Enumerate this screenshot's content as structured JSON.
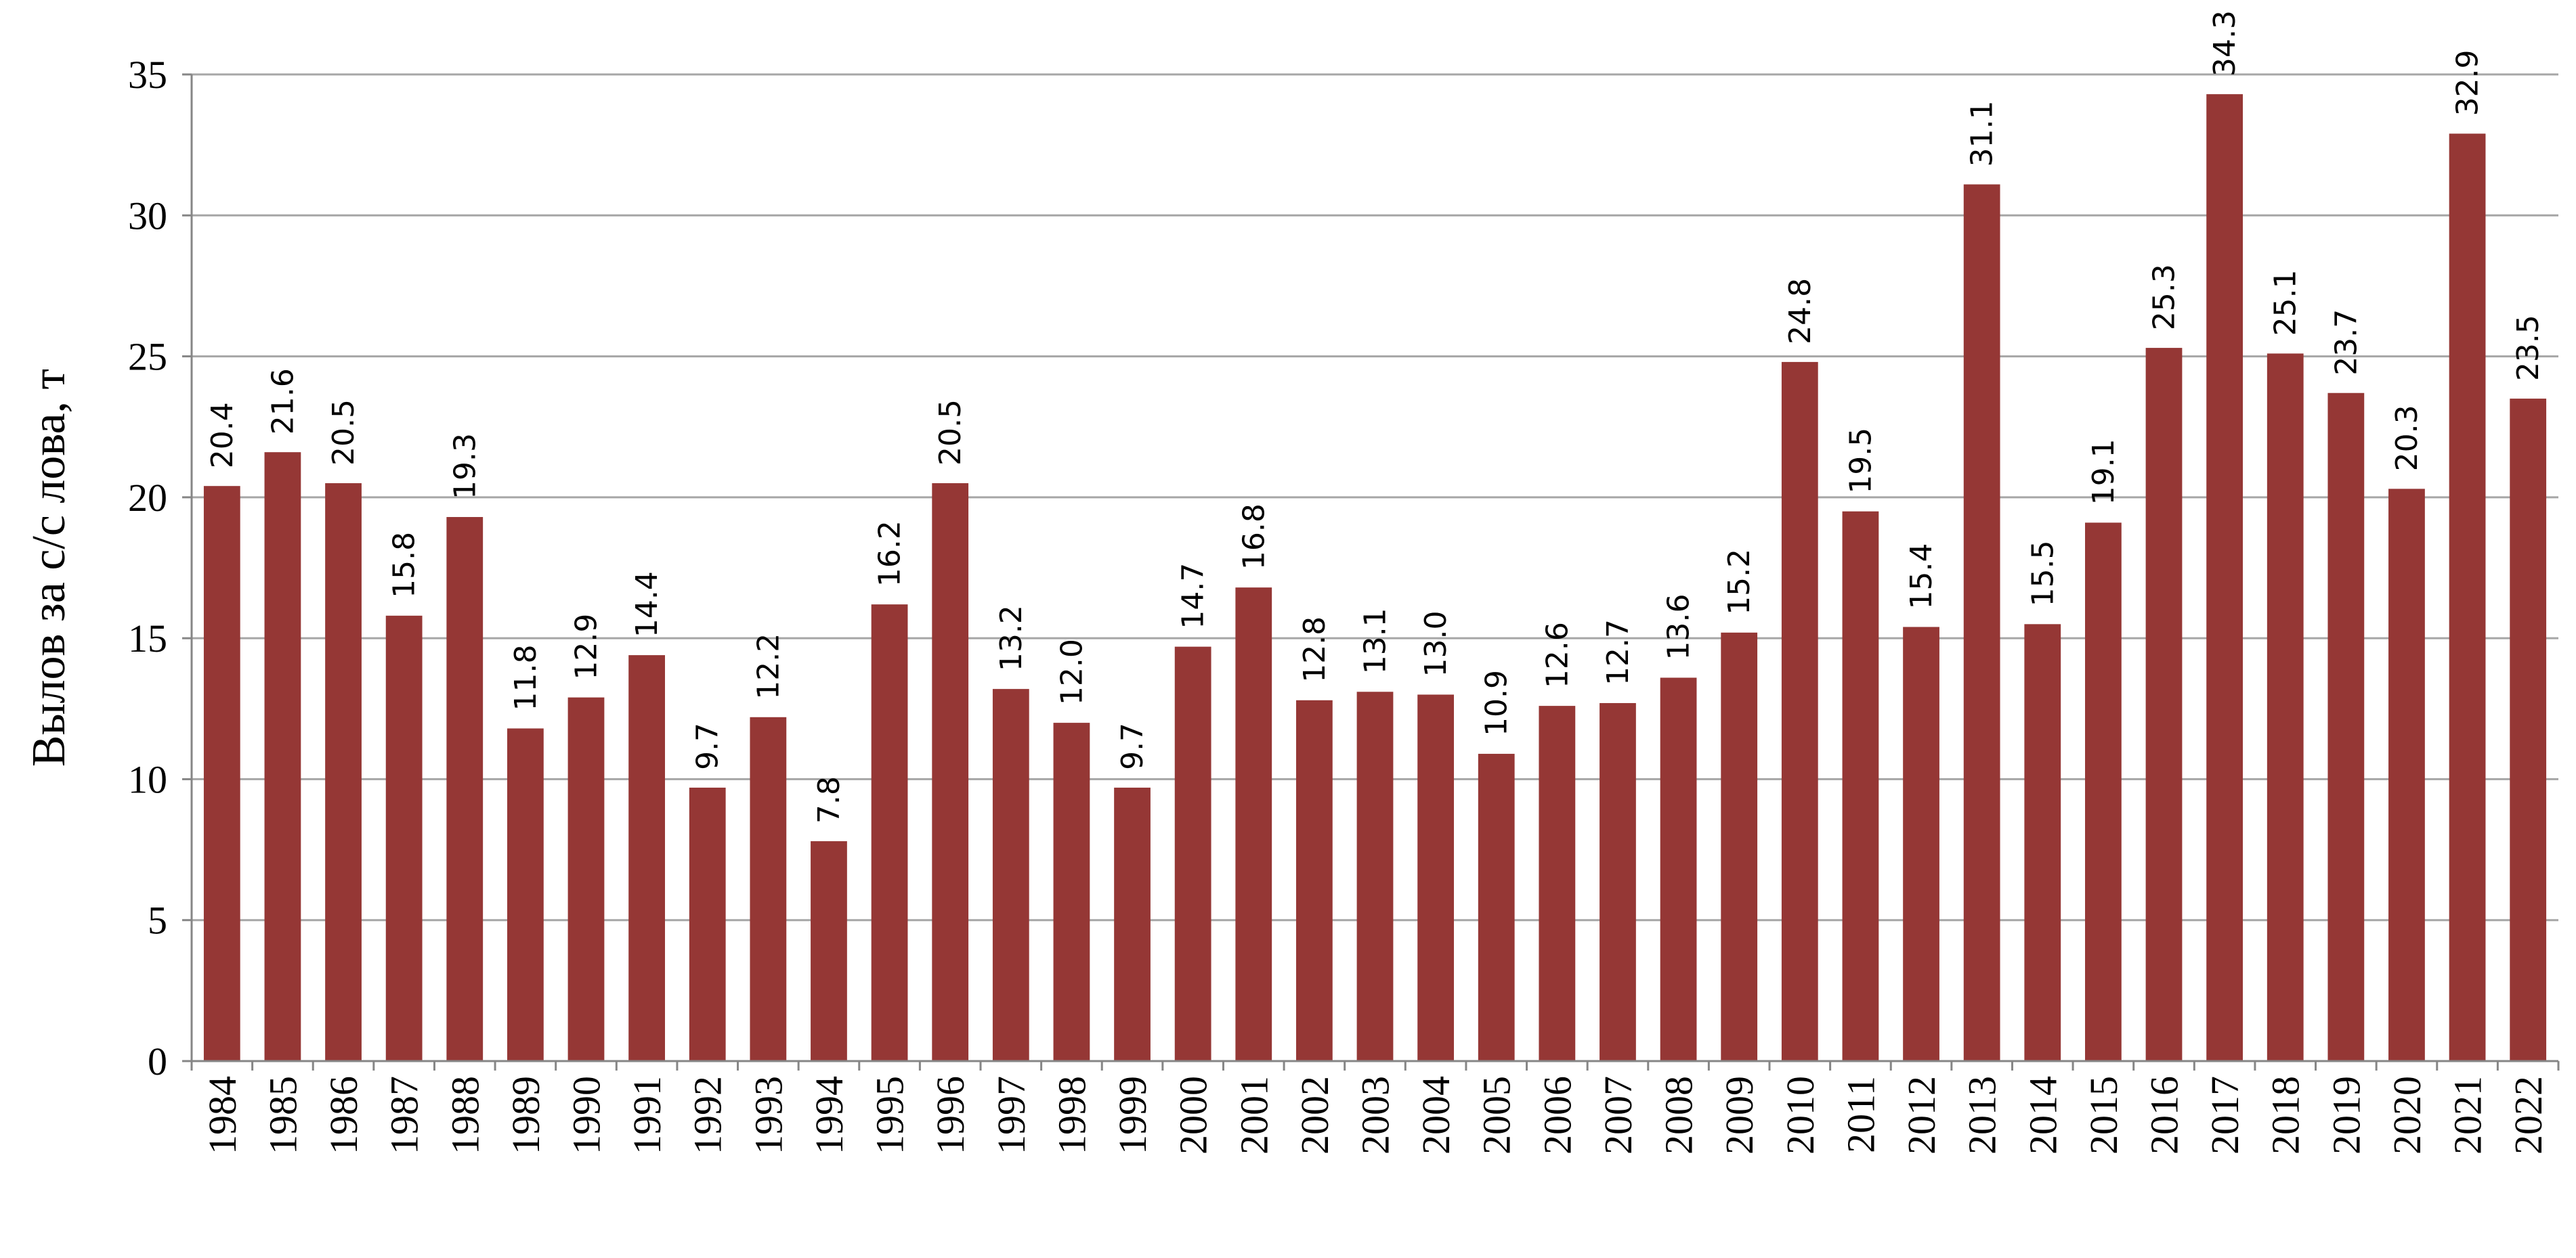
{
  "chart_data": {
    "type": "bar",
    "title": "",
    "xlabel": "",
    "ylabel": "Вылов за с/с лова, т",
    "ylim": [
      0,
      35
    ],
    "yticks": [
      0,
      5,
      10,
      15,
      20,
      25,
      30,
      35
    ],
    "grid": true,
    "legend": "none",
    "bar_color": "#953735",
    "categories": [
      "1984",
      "1985",
      "1986",
      "1987",
      "1988",
      "1989",
      "1990",
      "1991",
      "1992",
      "1993",
      "1994",
      "1995",
      "1996",
      "1997",
      "1998",
      "1999",
      "2000",
      "2001",
      "2002",
      "2003",
      "2004",
      "2005",
      "2006",
      "2007",
      "2008",
      "2009",
      "2010",
      "2011",
      "2012",
      "2013",
      "2014",
      "2015",
      "2016",
      "2017",
      "2018",
      "2019",
      "2020",
      "2021",
      "2022"
    ],
    "values": [
      20.4,
      21.6,
      20.5,
      15.8,
      19.3,
      11.8,
      12.9,
      14.4,
      9.7,
      12.2,
      7.8,
      16.2,
      20.5,
      13.2,
      12.0,
      9.7,
      14.7,
      16.8,
      12.8,
      13.1,
      13.0,
      10.9,
      12.6,
      12.7,
      13.6,
      15.2,
      24.8,
      19.5,
      15.4,
      31.1,
      15.5,
      19.1,
      25.3,
      34.3,
      25.1,
      23.7,
      20.3,
      32.9,
      23.5
    ],
    "data_labels": [
      "20.4",
      "21.6",
      "20.5",
      "15.8",
      "19.3",
      "11.8",
      "12.9",
      "14.4",
      "9.7",
      "12.2",
      "7.8",
      "16.2",
      "20.5",
      "13.2",
      "12.0",
      "9.7",
      "14.7",
      "16.8",
      "12.8",
      "13.1",
      "13.0",
      "10.9",
      "12.6",
      "12.7",
      "13.6",
      "15.2",
      "24.8",
      "19.5",
      "15.4",
      "31.1",
      "15.5",
      "19.1",
      "25.3",
      "34.3",
      "25.1",
      "23.7",
      "20.3",
      "32.9",
      "23.5"
    ]
  }
}
